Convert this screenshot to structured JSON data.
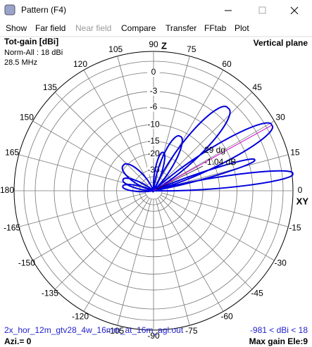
{
  "window": {
    "title": "Pattern   (F4)"
  },
  "menu": [
    "Show",
    "Far field",
    "Near field",
    "Compare",
    "Transfer",
    "FFtab",
    "Plot"
  ],
  "plot": {
    "gain_label": "Tot-gain [dBi]",
    "norm": "Norm-All : 18 dBi",
    "frequency": "28.5 MHz",
    "plane": "Vertical plane",
    "z_axis": "Z",
    "xy_axis": "XY",
    "ring_labels": [
      0,
      -3,
      -6,
      -10,
      -15,
      -20,
      -30
    ],
    "angle_labels": [
      0,
      15,
      30,
      45,
      60,
      75,
      90,
      105,
      120,
      135,
      150,
      165,
      180,
      -165,
      -150,
      -135,
      -120,
      -105,
      -90,
      -75,
      -60,
      -45,
      -30,
      -15
    ],
    "marker_angle": "29 dg",
    "marker_gain": "-1.04 dB",
    "file": "2x_hor_12m_gtv28_4w_16mm_at_16m_agl.out",
    "range": "-981 < dBi < 18",
    "azimuth": "Azi.= 0",
    "max_gain": "Max gain Ele:9"
  }
}
